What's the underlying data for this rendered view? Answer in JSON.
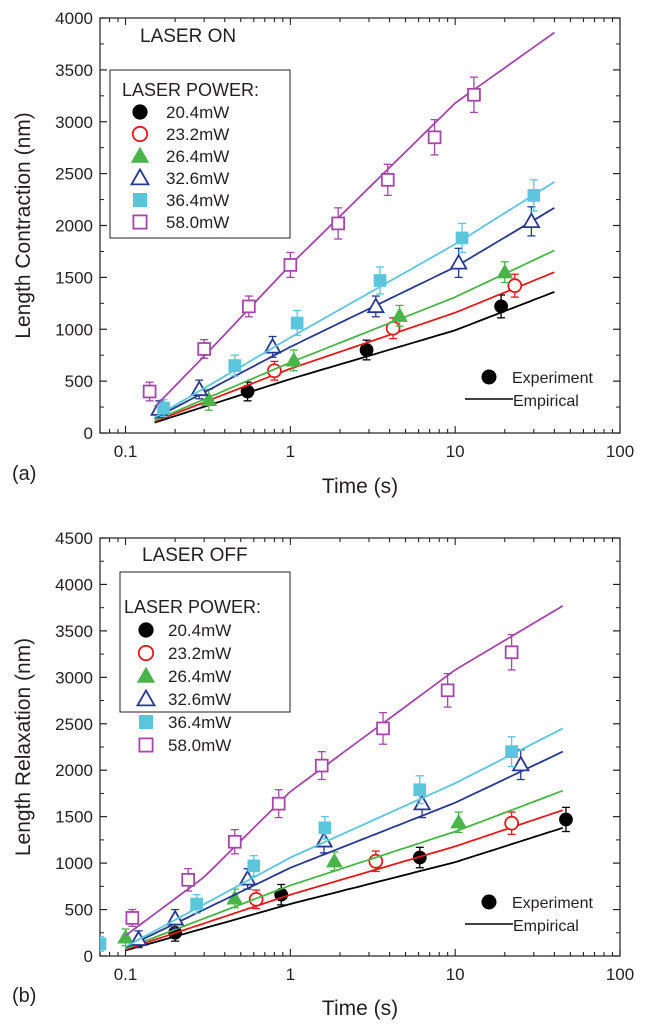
{
  "chart_data": [
    {
      "panel": "(a)",
      "type": "scatter",
      "annotation": "LASER ON",
      "xlabel": "Time (s)",
      "ylabel": "Length Contraction (nm)",
      "xscale": "log",
      "xlim": [
        0.07,
        100
      ],
      "ylim": [
        0,
        4000
      ],
      "xticks": [
        0.1,
        1,
        10,
        100
      ],
      "xtick_labels": [
        "0.1",
        "1",
        "10",
        "100"
      ],
      "yticks": [
        0,
        500,
        1000,
        1500,
        2000,
        2500,
        3000,
        3500,
        4000
      ],
      "ytick_labels": [
        "0",
        "500",
        "1000",
        "1500",
        "2000",
        "2500",
        "3000",
        "3500",
        "4000"
      ],
      "grid": false,
      "legend_title": "LASER POWER:",
      "legend_placement": "top-left",
      "key_placement": "bottom-right",
      "key": [
        {
          "symbol": "marker",
          "label": "Experiment"
        },
        {
          "symbol": "line",
          "label": "Empirical"
        }
      ],
      "series": [
        {
          "name": "20.4mW",
          "color": "#000000",
          "marker": "circle",
          "filled": true,
          "points": [
            [
              0.55,
              400
            ],
            [
              2.9,
              800
            ],
            [
              19,
              1220
            ]
          ],
          "err": [
            90,
            95,
            110
          ],
          "fit": [
            [
              0.15,
              100
            ],
            [
              1,
              520
            ],
            [
              10,
              990
            ],
            [
              40,
              1360
            ]
          ]
        },
        {
          "name": "23.2mW",
          "color": "#e31a1c",
          "marker": "circle",
          "filled": false,
          "points": [
            [
              0.8,
              600
            ],
            [
              4.2,
              1010
            ],
            [
              23,
              1420
            ]
          ],
          "err": [
            90,
            100,
            110
          ],
          "fit": [
            [
              0.15,
              110
            ],
            [
              1,
              620
            ],
            [
              10,
              1160
            ],
            [
              40,
              1550
            ]
          ]
        },
        {
          "name": "26.4mW",
          "color": "#49b44a",
          "marker": "triangle",
          "filled": true,
          "points": [
            [
              0.32,
              320
            ],
            [
              1.05,
              700
            ],
            [
              4.6,
              1130
            ],
            [
              20,
              1550
            ]
          ],
          "err": [
            100,
            100,
            100,
            100
          ],
          "fit": [
            [
              0.15,
              120
            ],
            [
              1,
              680
            ],
            [
              10,
              1310
            ],
            [
              40,
              1760
            ]
          ]
        },
        {
          "name": "32.6mW",
          "color": "#27388f",
          "marker": "triangle",
          "filled": false,
          "points": [
            [
              0.16,
              230
            ],
            [
              0.28,
              420
            ],
            [
              0.78,
              830
            ],
            [
              3.3,
              1220
            ],
            [
              10.5,
              1640
            ],
            [
              29,
              2040
            ]
          ],
          "err": [
            80,
            90,
            100,
            100,
            140,
            140
          ],
          "fit": [
            [
              0.15,
              140
            ],
            [
              1,
              830
            ],
            [
              10,
              1600
            ],
            [
              40,
              2170
            ]
          ]
        },
        {
          "name": "36.4mW",
          "color": "#5bc5dc",
          "marker": "square",
          "filled": true,
          "points": [
            [
              0.17,
              240
            ],
            [
              0.46,
              650
            ],
            [
              1.1,
              1060
            ],
            [
              3.5,
              1470
            ],
            [
              11,
              1880
            ],
            [
              30,
              2290
            ]
          ],
          "err": [
            80,
            100,
            120,
            130,
            140,
            150
          ],
          "fit": [
            [
              0.15,
              150
            ],
            [
              1,
              920
            ],
            [
              10,
              1820
            ],
            [
              40,
              2420
            ]
          ]
        },
        {
          "name": "58.0mW",
          "color": "#a347a9",
          "marker": "square",
          "filled": false,
          "points": [
            [
              0.14,
              400
            ],
            [
              0.3,
              810
            ],
            [
              0.56,
              1220
            ],
            [
              1,
              1620
            ],
            [
              1.95,
              2020
            ],
            [
              3.9,
              2440
            ],
            [
              7.5,
              2850
            ],
            [
              13,
              3260
            ]
          ],
          "err": [
            90,
            90,
            100,
            120,
            150,
            150,
            170,
            170
          ],
          "fit": [
            [
              0.15,
              250
            ],
            [
              0.3,
              740
            ],
            [
              1,
              1620
            ],
            [
              10,
              3180
            ],
            [
              40,
              3860
            ]
          ]
        }
      ]
    },
    {
      "panel": "(b)",
      "type": "scatter",
      "annotation": "LASER OFF",
      "xlabel": "Time (s)",
      "ylabel": "Length Relaxation (nm)",
      "xscale": "log",
      "xlim": [
        0.07,
        100
      ],
      "ylim": [
        0,
        4500
      ],
      "xticks": [
        0.1,
        1,
        10,
        100
      ],
      "xtick_labels": [
        "0.1",
        "1",
        "10",
        "100"
      ],
      "yticks": [
        0,
        500,
        1000,
        1500,
        2000,
        2500,
        3000,
        3500,
        4000,
        4500
      ],
      "ytick_labels": [
        "0",
        "500",
        "1000",
        "1500",
        "2000",
        "2500",
        "3000",
        "3500",
        "4000",
        "4500"
      ],
      "grid": false,
      "legend_title": "LASER POWER:",
      "legend_placement": "top-left",
      "key_placement": "bottom-right",
      "key": [
        {
          "symbol": "marker",
          "label": "Experiment"
        },
        {
          "symbol": "line",
          "label": "Empirical"
        }
      ],
      "series": [
        {
          "name": "20.4mW",
          "color": "#000000",
          "marker": "circle",
          "filled": true,
          "points": [
            [
              0.2,
              250
            ],
            [
              0.88,
              660
            ],
            [
              6.1,
              1060
            ],
            [
              47,
              1470
            ]
          ],
          "err": [
            90,
            110,
            110,
            130
          ],
          "fit": [
            [
              0.1,
              60
            ],
            [
              1,
              560
            ],
            [
              10,
              1010
            ],
            [
              45,
              1380
            ]
          ]
        },
        {
          "name": "23.2mW",
          "color": "#e31a1c",
          "marker": "circle",
          "filled": false,
          "points": [
            [
              0.62,
              610
            ],
            [
              3.3,
              1020
            ],
            [
              22,
              1430
            ]
          ],
          "err": [
            100,
            110,
            120
          ],
          "fit": [
            [
              0.1,
              70
            ],
            [
              1,
              660
            ],
            [
              10,
              1180
            ],
            [
              45,
              1570
            ]
          ]
        },
        {
          "name": "26.4mW",
          "color": "#49b44a",
          "marker": "triangle",
          "filled": true,
          "points": [
            [
              0.1,
              200
            ],
            [
              0.46,
              620
            ],
            [
              1.85,
              1020
            ],
            [
              10.5,
              1440
            ]
          ],
          "err": [
            90,
            100,
            100,
            110
          ],
          "fit": [
            [
              0.1,
              80
            ],
            [
              1,
              760
            ],
            [
              10,
              1340
            ],
            [
              45,
              1780
            ]
          ]
        },
        {
          "name": "32.6mW",
          "color": "#27388f",
          "marker": "triangle",
          "filled": false,
          "points": [
            [
              0.12,
              180
            ],
            [
              0.2,
              400
            ],
            [
              0.55,
              830
            ],
            [
              1.6,
              1240
            ],
            [
              6.3,
              1640
            ],
            [
              25,
              2060
            ]
          ],
          "err": [
            90,
            100,
            110,
            130,
            150,
            160
          ],
          "fit": [
            [
              0.1,
              90
            ],
            [
              1,
              950
            ],
            [
              10,
              1650
            ],
            [
              45,
              2200
            ]
          ]
        },
        {
          "name": "36.4mW",
          "color": "#5bc5dc",
          "marker": "square",
          "filled": true,
          "points": [
            [
              0.07,
              130
            ],
            [
              0.27,
              560
            ],
            [
              0.6,
              970
            ],
            [
              1.62,
              1380
            ],
            [
              6.1,
              1790
            ],
            [
              22,
              2200
            ]
          ],
          "err": [
            80,
            100,
            110,
            120,
            150,
            160
          ],
          "fit": [
            [
              0.1,
              100
            ],
            [
              1,
              1060
            ],
            [
              10,
              1860
            ],
            [
              45,
              2450
            ]
          ]
        },
        {
          "name": "58.0mW",
          "color": "#a347a9",
          "marker": "square",
          "filled": false,
          "points": [
            [
              0.11,
              410
            ],
            [
              0.24,
              820
            ],
            [
              0.46,
              1230
            ],
            [
              0.85,
              1640
            ],
            [
              1.55,
              2050
            ],
            [
              3.65,
              2450
            ],
            [
              9,
              2860
            ],
            [
              22,
              3270
            ]
          ],
          "err": [
            90,
            120,
            130,
            150,
            150,
            170,
            180,
            190
          ],
          "fit": [
            [
              0.1,
              220
            ],
            [
              0.3,
              850
            ],
            [
              1,
              1770
            ],
            [
              10,
              3080
            ],
            [
              45,
              3770
            ]
          ]
        }
      ]
    }
  ]
}
